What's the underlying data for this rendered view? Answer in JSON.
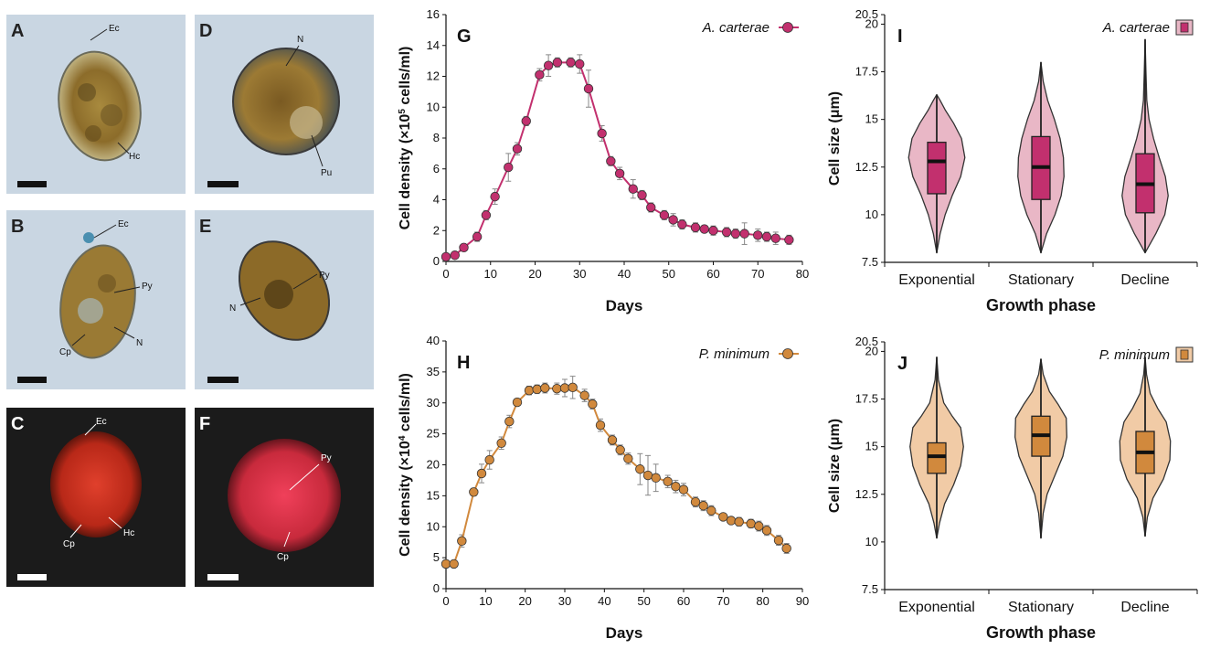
{
  "micrographs": [
    {
      "letter": "A",
      "labels": [
        "Ec",
        "Hc"
      ]
    },
    {
      "letter": "B",
      "labels": [
        "Ec",
        "Py",
        "Cp",
        "N"
      ]
    },
    {
      "letter": "C",
      "labels": [
        "Ec",
        "Hc",
        "Cp"
      ]
    },
    {
      "letter": "D",
      "labels": [
        "N",
        "Pu"
      ]
    },
    {
      "letter": "E",
      "labels": [
        "N",
        "Py"
      ]
    },
    {
      "letter": "F",
      "labels": [
        "Py",
        "Cp"
      ]
    }
  ],
  "chart_data": [
    {
      "panel": "G",
      "type": "line",
      "legend": "A. carterae",
      "color": "#c2306e",
      "xlabel": "Days",
      "ylabel_pre": "Cell density (×10",
      "ylabel_exp": "5",
      "ylabel_post": " cells/ml)",
      "xlim": [
        0,
        80
      ],
      "ylim": [
        0,
        16
      ],
      "xticks": [
        0,
        10,
        20,
        30,
        40,
        50,
        60,
        70,
        80
      ],
      "yticks": [
        0,
        2,
        4,
        6,
        8,
        10,
        12,
        14,
        16
      ],
      "x": [
        0,
        2,
        4,
        7,
        9,
        11,
        14,
        16,
        18,
        21,
        23,
        25,
        28,
        30,
        32,
        35,
        37,
        39,
        42,
        44,
        46,
        49,
        51,
        53,
        56,
        58,
        60,
        63,
        65,
        67,
        70,
        72,
        74,
        77
      ],
      "y": [
        0.3,
        0.4,
        0.9,
        1.6,
        3.0,
        4.2,
        6.1,
        7.3,
        9.1,
        12.1,
        12.7,
        12.9,
        12.9,
        12.8,
        11.2,
        8.3,
        6.5,
        5.7,
        4.7,
        4.3,
        3.5,
        3.0,
        2.7,
        2.4,
        2.2,
        2.1,
        2.0,
        1.9,
        1.8,
        1.8,
        1.7,
        1.6,
        1.5,
        1.4
      ],
      "err": [
        0.1,
        0.1,
        0.2,
        0.3,
        0.3,
        0.5,
        0.9,
        0.4,
        0.3,
        0.4,
        0.7,
        0.3,
        0.3,
        0.6,
        1.2,
        0.5,
        0.3,
        0.4,
        0.6,
        0.3,
        0.3,
        0.3,
        0.4,
        0.3,
        0.3,
        0.2,
        0.3,
        0.3,
        0.3,
        0.7,
        0.4,
        0.3,
        0.4,
        0.3
      ]
    },
    {
      "panel": "H",
      "type": "line",
      "legend": "P. minimum",
      "color": "#d1893d",
      "xlabel": "Days",
      "ylabel_pre": "Cell density (×10",
      "ylabel_exp": "4",
      "ylabel_post": " cells/ml)",
      "xlim": [
        0,
        90
      ],
      "ylim": [
        0,
        40
      ],
      "xticks": [
        0,
        10,
        20,
        30,
        40,
        50,
        60,
        70,
        80,
        90
      ],
      "yticks": [
        0,
        5,
        10,
        15,
        20,
        25,
        30,
        35,
        40
      ],
      "x": [
        0,
        2,
        4,
        7,
        9,
        11,
        14,
        16,
        18,
        21,
        23,
        25,
        28,
        30,
        32,
        35,
        37,
        39,
        42,
        44,
        46,
        49,
        51,
        53,
        56,
        58,
        60,
        63,
        65,
        67,
        70,
        72,
        74,
        77,
        79,
        81,
        84,
        86
      ],
      "y": [
        4.0,
        4.0,
        7.7,
        15.6,
        18.6,
        20.8,
        23.5,
        27.0,
        30.1,
        32.0,
        32.2,
        32.4,
        32.3,
        32.4,
        32.5,
        31.2,
        29.8,
        26.4,
        24.0,
        22.4,
        21.0,
        19.3,
        18.3,
        17.9,
        17.3,
        16.5,
        16.0,
        14.0,
        13.4,
        12.6,
        11.6,
        11.0,
        10.8,
        10.5,
        10.1,
        9.4,
        7.8,
        6.5
      ],
      "err": [
        0.6,
        0.5,
        1.0,
        0.6,
        1.5,
        1.5,
        1.0,
        1.0,
        0.5,
        0.7,
        0.7,
        0.8,
        0.9,
        1.4,
        1.8,
        1.0,
        0.8,
        1.0,
        0.8,
        0.8,
        0.9,
        2.5,
        3.2,
        2.2,
        1.0,
        1.0,
        1.0,
        0.8,
        0.8,
        0.8,
        0.5,
        0.5,
        0.7,
        0.7,
        0.8,
        0.8,
        0.8,
        0.8
      ]
    },
    {
      "panel": "I",
      "type": "violin",
      "legend": "A. carterae",
      "color": "#c2306e",
      "fill": "#e9b7c6",
      "xlabel": "Growth phase",
      "ylabel": "Cell size (μm)",
      "ylim": [
        7.5,
        20.5
      ],
      "yticks": [
        7.5,
        10.0,
        12.5,
        15.0,
        17.5,
        20.0,
        20.5
      ],
      "categories": [
        "Exponential",
        "Stationary",
        "Decline"
      ],
      "groups": [
        {
          "name": "Exponential",
          "min": 8.0,
          "max": 16.3,
          "q1": 11.1,
          "median": 12.8,
          "q3": 13.8,
          "shape": [
            [
              8.0,
              0
            ],
            [
              9.0,
              0.12
            ],
            [
              10.0,
              0.3
            ],
            [
              11.0,
              0.55
            ],
            [
              12.0,
              0.85
            ],
            [
              13.0,
              1.0
            ],
            [
              14.0,
              0.88
            ],
            [
              14.8,
              0.6
            ],
            [
              15.5,
              0.3
            ],
            [
              16.0,
              0.12
            ],
            [
              16.3,
              0
            ]
          ]
        },
        {
          "name": "Stationary",
          "min": 8.0,
          "max": 18.0,
          "q1": 10.8,
          "median": 12.5,
          "q3": 14.1,
          "shape": [
            [
              8.0,
              0
            ],
            [
              9.0,
              0.2
            ],
            [
              10.0,
              0.5
            ],
            [
              11.0,
              0.72
            ],
            [
              12.0,
              0.82
            ],
            [
              13.0,
              0.8
            ],
            [
              14.0,
              0.68
            ],
            [
              15.0,
              0.48
            ],
            [
              16.0,
              0.24
            ],
            [
              17.0,
              0.08
            ],
            [
              18.0,
              0
            ]
          ]
        },
        {
          "name": "Decline",
          "min": 8.0,
          "max": 19.2,
          "q1": 10.1,
          "median": 11.6,
          "q3": 13.2,
          "shape": [
            [
              8.0,
              0
            ],
            [
              9.0,
              0.38
            ],
            [
              10.0,
              0.7
            ],
            [
              11.0,
              0.82
            ],
            [
              12.0,
              0.72
            ],
            [
              13.0,
              0.5
            ],
            [
              14.0,
              0.3
            ],
            [
              15.0,
              0.14
            ],
            [
              16.0,
              0.06
            ],
            [
              17.5,
              0.03
            ],
            [
              19.2,
              0
            ]
          ]
        }
      ]
    },
    {
      "panel": "J",
      "type": "violin",
      "legend": "P. minimum",
      "color": "#d1893d",
      "fill": "#f1cba6",
      "xlabel": "Growth phase",
      "ylabel": "Cell size (μm)",
      "ylim": [
        7.5,
        20.5
      ],
      "yticks": [
        7.5,
        10.0,
        12.5,
        15.0,
        17.5,
        20.0,
        20.5
      ],
      "categories": [
        "Exponential",
        "Stationary",
        "Decline"
      ],
      "groups": [
        {
          "name": "Exponential",
          "min": 10.2,
          "max": 19.7,
          "q1": 13.6,
          "median": 14.5,
          "q3": 15.2,
          "shape": [
            [
              10.2,
              0
            ],
            [
              11.0,
              0.1
            ],
            [
              12.0,
              0.28
            ],
            [
              13.0,
              0.6
            ],
            [
              14.0,
              0.85
            ],
            [
              15.0,
              0.95
            ],
            [
              16.0,
              0.85
            ],
            [
              16.6,
              0.55
            ],
            [
              17.3,
              0.25
            ],
            [
              18.5,
              0.06
            ],
            [
              19.7,
              0
            ]
          ]
        },
        {
          "name": "Stationary",
          "min": 10.2,
          "max": 19.6,
          "q1": 14.5,
          "median": 15.6,
          "q3": 16.6,
          "shape": [
            [
              10.2,
              0
            ],
            [
              11.5,
              0.08
            ],
            [
              12.5,
              0.22
            ],
            [
              13.5,
              0.5
            ],
            [
              14.5,
              0.78
            ],
            [
              15.5,
              0.92
            ],
            [
              16.5,
              0.9
            ],
            [
              17.2,
              0.62
            ],
            [
              17.9,
              0.3
            ],
            [
              18.8,
              0.08
            ],
            [
              19.6,
              0
            ]
          ]
        },
        {
          "name": "Decline",
          "min": 10.3,
          "max": 19.7,
          "q1": 13.6,
          "median": 14.7,
          "q3": 15.8,
          "shape": [
            [
              10.3,
              0
            ],
            [
              11.3,
              0.08
            ],
            [
              12.3,
              0.28
            ],
            [
              13.3,
              0.65
            ],
            [
              14.3,
              0.88
            ],
            [
              15.3,
              0.9
            ],
            [
              16.3,
              0.75
            ],
            [
              17.0,
              0.45
            ],
            [
              17.8,
              0.18
            ],
            [
              18.8,
              0.05
            ],
            [
              19.7,
              0
            ]
          ]
        }
      ]
    }
  ]
}
